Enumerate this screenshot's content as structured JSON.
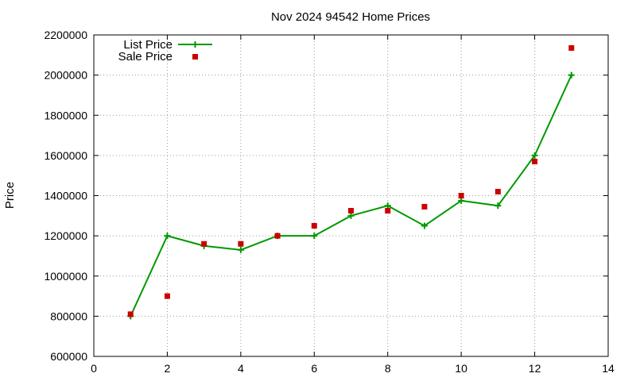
{
  "chart_data": {
    "type": "line",
    "title": "Nov 2024 94542 Home Prices",
    "xlabel": "",
    "ylabel": "Price",
    "xlim": [
      0,
      14
    ],
    "ylim": [
      600000,
      2200000
    ],
    "xticks": [
      0,
      2,
      4,
      6,
      8,
      10,
      12,
      14
    ],
    "yticks": [
      600000,
      800000,
      1000000,
      1200000,
      1400000,
      1600000,
      1800000,
      2000000,
      2200000
    ],
    "grid": true,
    "legend_position": "top-left",
    "series": [
      {
        "name": "List Price",
        "style": "line-with-plus-markers",
        "color": "#009900",
        "x": [
          1,
          2,
          3,
          4,
          5,
          6,
          7,
          8,
          9,
          10,
          11,
          12,
          13
        ],
        "y": [
          800000,
          1200000,
          1150000,
          1130000,
          1200000,
          1200000,
          1300000,
          1350000,
          1250000,
          1375000,
          1350000,
          1600000,
          2000000
        ]
      },
      {
        "name": "Sale Price",
        "style": "square-markers",
        "color": "#cc0000",
        "x": [
          1,
          2,
          3,
          4,
          5,
          6,
          7,
          8,
          9,
          10,
          11,
          12,
          13
        ],
        "y": [
          810000,
          900000,
          1160000,
          1160000,
          1200000,
          1250000,
          1325000,
          1325000,
          1345000,
          1400000,
          1420000,
          1570000,
          2135000
        ]
      }
    ]
  }
}
